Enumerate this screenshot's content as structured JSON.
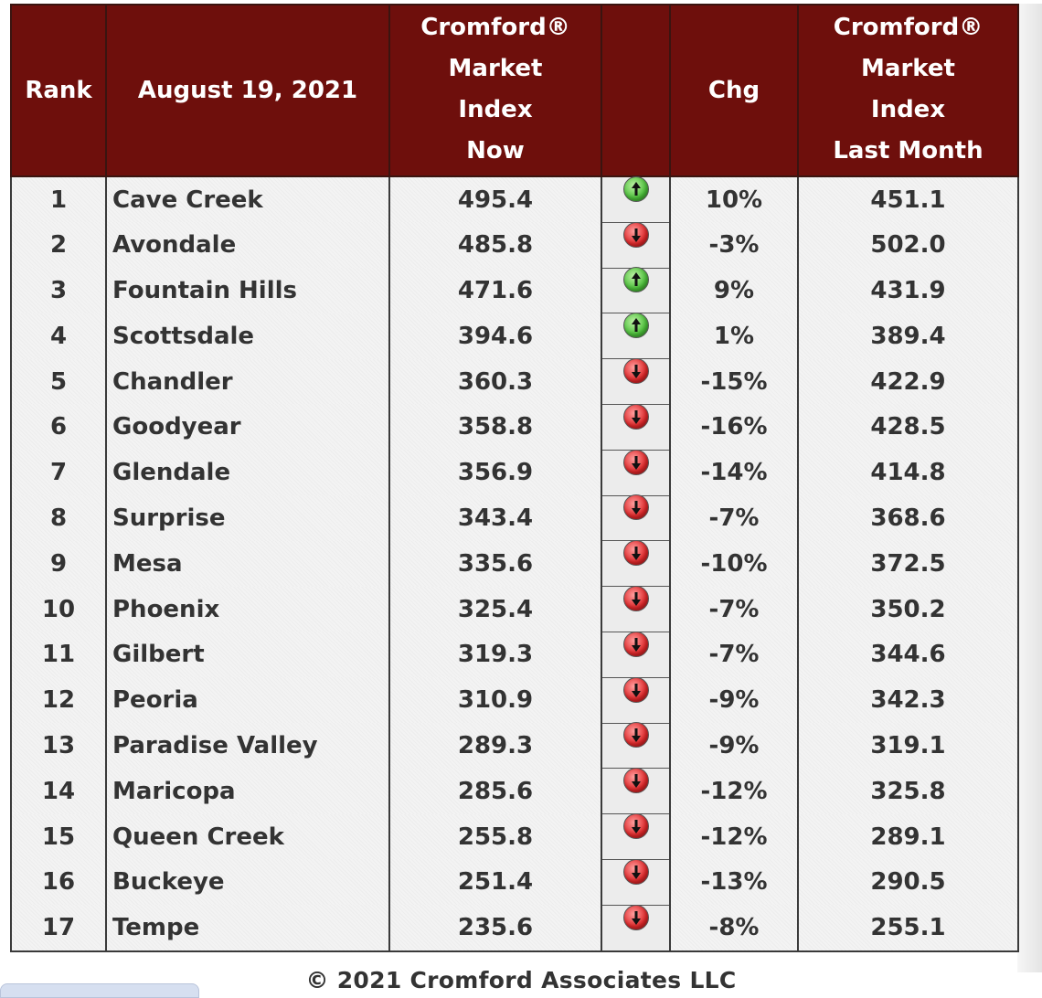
{
  "headers": {
    "rank": "Rank",
    "date": "August 19, 2021",
    "now": [
      "Cromford®",
      "Market",
      "Index",
      "Now"
    ],
    "arrow": "",
    "chg": "Chg",
    "last": [
      "Cromford®",
      "Market",
      "Index",
      "Last Month"
    ]
  },
  "rows": [
    {
      "rank": "1",
      "city": "Cave Creek",
      "now": "495.4",
      "dir": "up",
      "chg": "10%",
      "last": "451.1"
    },
    {
      "rank": "2",
      "city": "Avondale",
      "now": "485.8",
      "dir": "down",
      "chg": "-3%",
      "last": "502.0"
    },
    {
      "rank": "3",
      "city": "Fountain Hills",
      "now": "471.6",
      "dir": "up",
      "chg": "9%",
      "last": "431.9"
    },
    {
      "rank": "4",
      "city": "Scottsdale",
      "now": "394.6",
      "dir": "up",
      "chg": "1%",
      "last": "389.4"
    },
    {
      "rank": "5",
      "city": "Chandler",
      "now": "360.3",
      "dir": "down",
      "chg": "-15%",
      "last": "422.9"
    },
    {
      "rank": "6",
      "city": "Goodyear",
      "now": "358.8",
      "dir": "down",
      "chg": "-16%",
      "last": "428.5"
    },
    {
      "rank": "7",
      "city": "Glendale",
      "now": "356.9",
      "dir": "down",
      "chg": "-14%",
      "last": "414.8"
    },
    {
      "rank": "8",
      "city": "Surprise",
      "now": "343.4",
      "dir": "down",
      "chg": "-7%",
      "last": "368.6"
    },
    {
      "rank": "9",
      "city": "Mesa",
      "now": "335.6",
      "dir": "down",
      "chg": "-10%",
      "last": "372.5"
    },
    {
      "rank": "10",
      "city": "Phoenix",
      "now": "325.4",
      "dir": "down",
      "chg": "-7%",
      "last": "350.2"
    },
    {
      "rank": "11",
      "city": "Gilbert",
      "now": "319.3",
      "dir": "down",
      "chg": "-7%",
      "last": "344.6"
    },
    {
      "rank": "12",
      "city": "Peoria",
      "now": "310.9",
      "dir": "down",
      "chg": "-9%",
      "last": "342.3"
    },
    {
      "rank": "13",
      "city": "Paradise Valley",
      "now": "289.3",
      "dir": "down",
      "chg": "-9%",
      "last": "319.1"
    },
    {
      "rank": "14",
      "city": "Maricopa",
      "now": "285.6",
      "dir": "down",
      "chg": "-12%",
      "last": "325.8"
    },
    {
      "rank": "15",
      "city": "Queen Creek",
      "now": "255.8",
      "dir": "down",
      "chg": "-12%",
      "last": "289.1"
    },
    {
      "rank": "16",
      "city": "Buckeye",
      "now": "251.4",
      "dir": "down",
      "chg": "-13%",
      "last": "290.5"
    },
    {
      "rank": "17",
      "city": "Tempe",
      "now": "235.6",
      "dir": "down",
      "chg": "-8%",
      "last": "255.1"
    }
  ],
  "footer": "© 2021 Cromford Associates LLC",
  "colors": {
    "header_bg": "#6e0f0c",
    "up": "#4cc03a",
    "down": "#e0282a"
  },
  "icons": {
    "up": "green-up-arrow-icon",
    "down": "red-down-arrow-icon"
  }
}
